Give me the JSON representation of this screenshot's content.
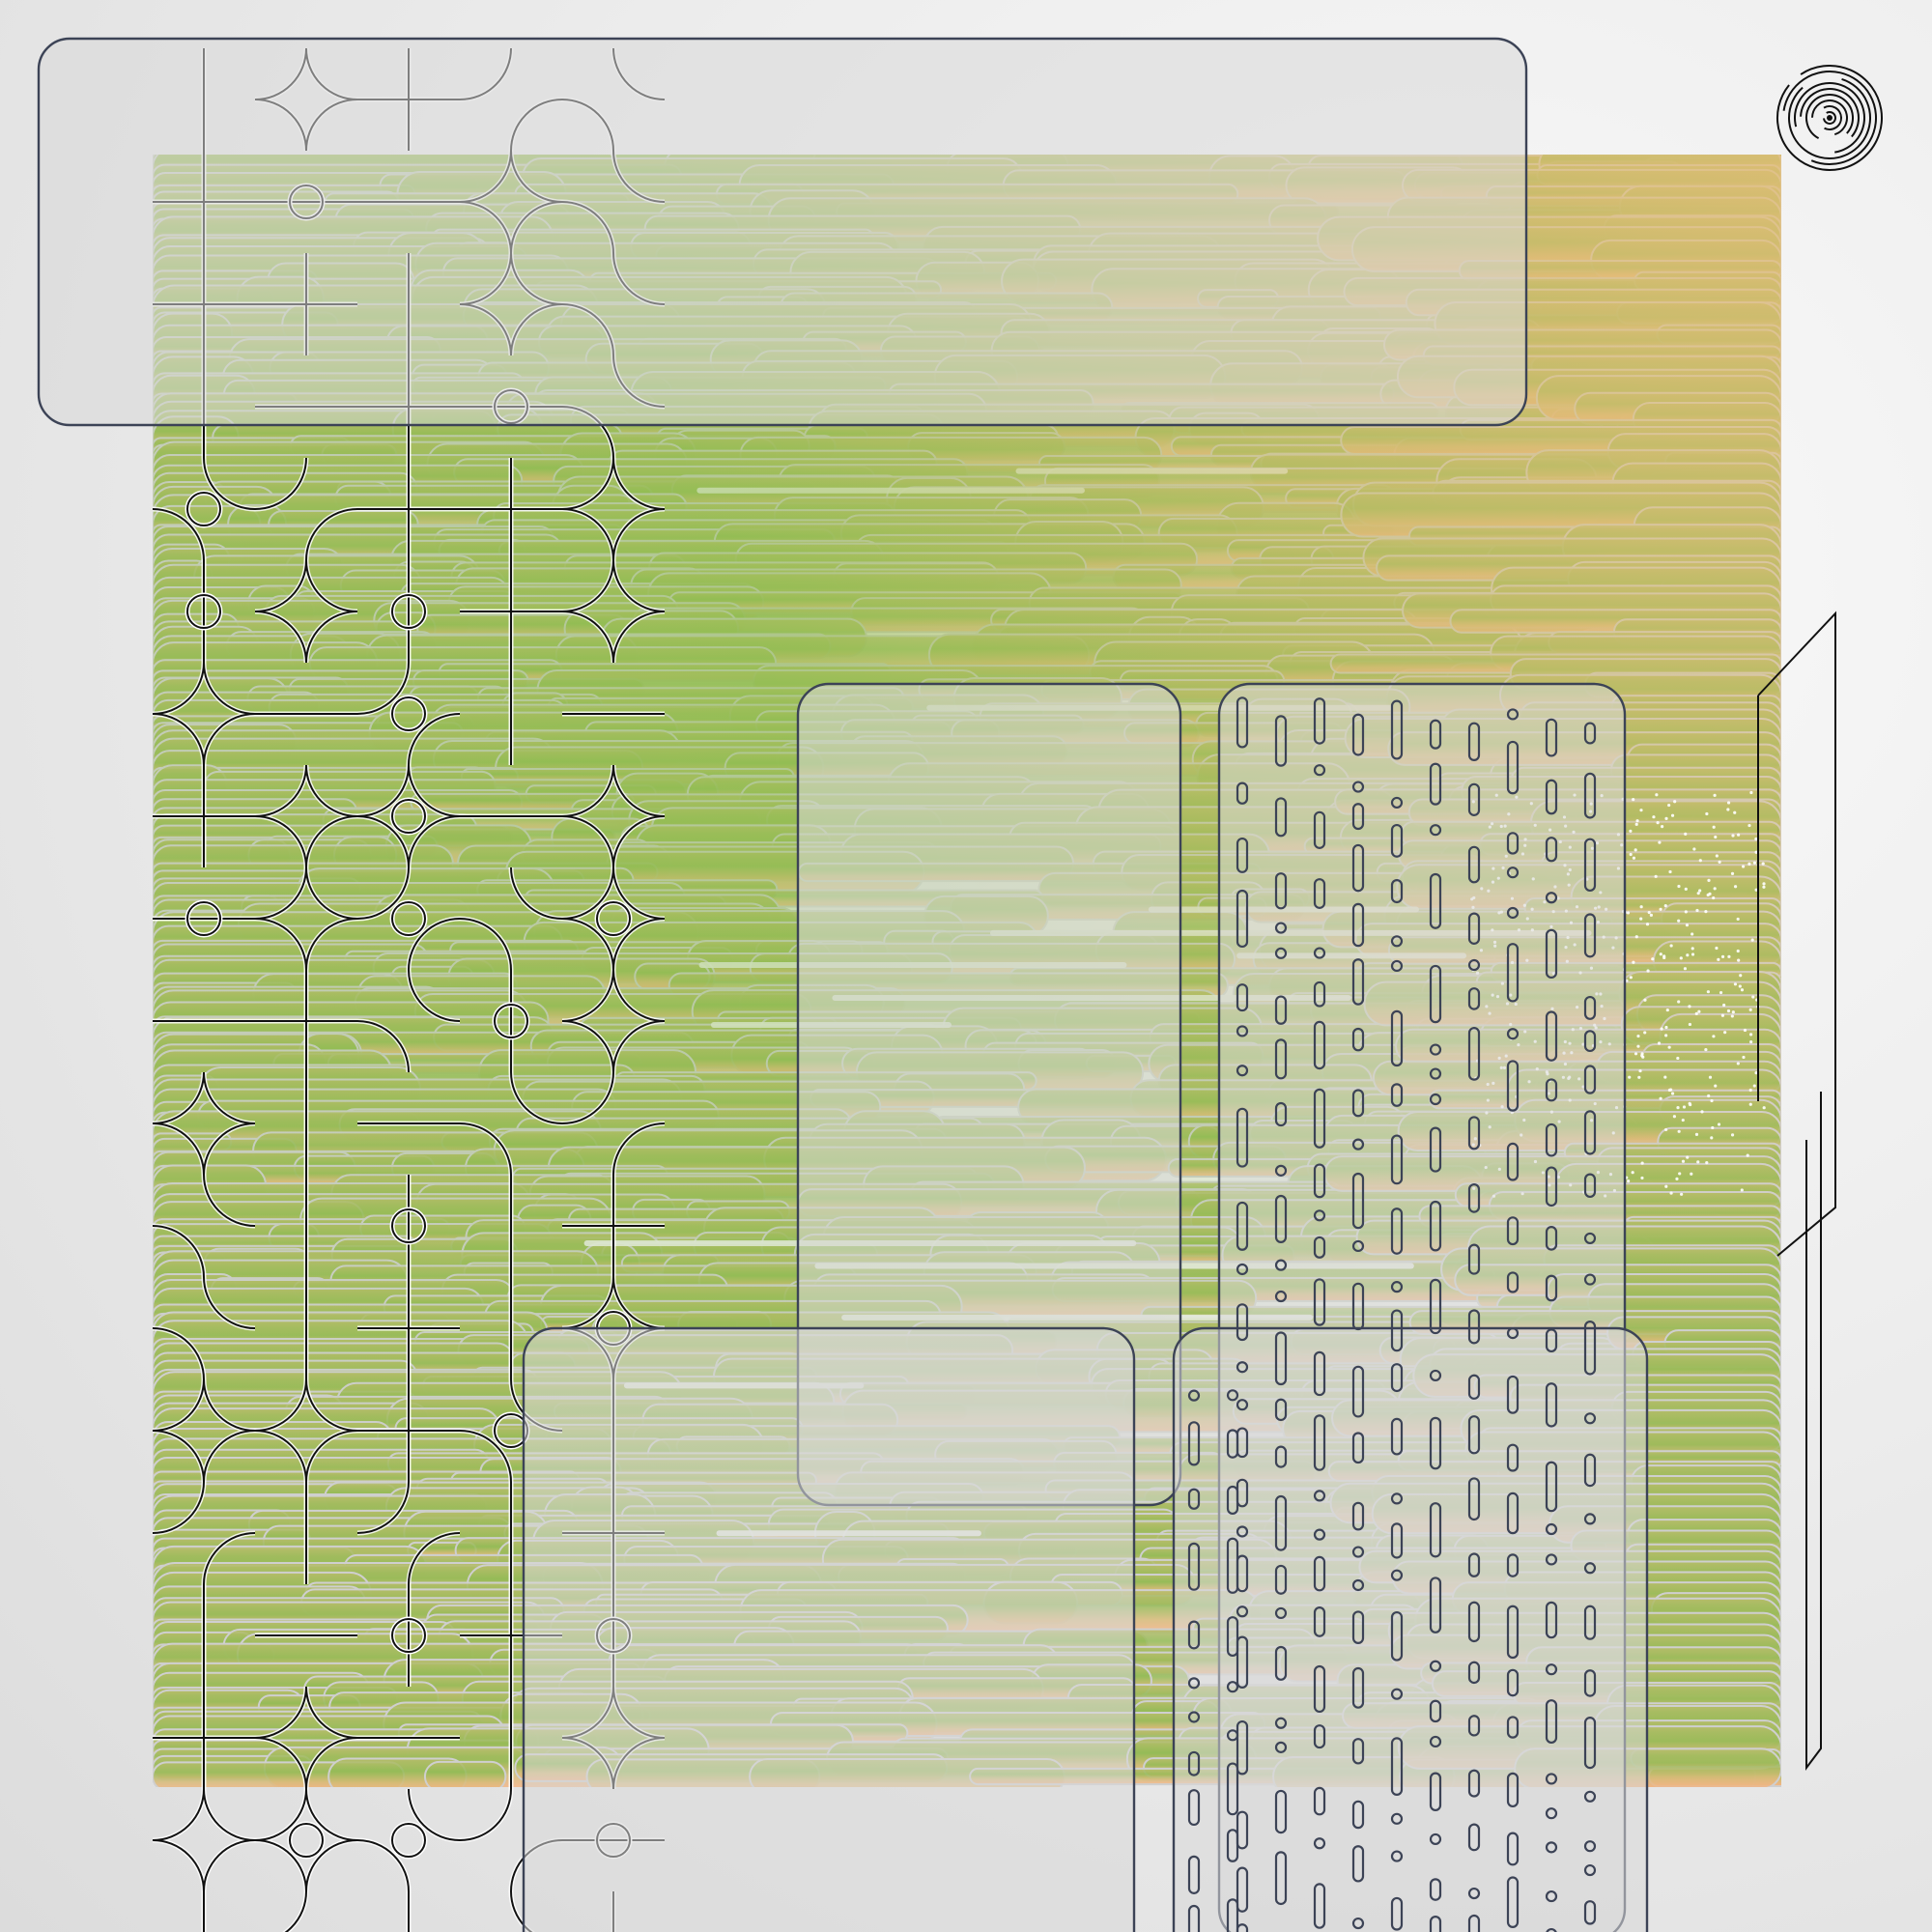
{
  "palette": {
    "green": "#93bb56",
    "olive": "#b9bc6c",
    "tan": "#d8bb78",
    "orange": "#f6b487",
    "stroke_light": "#cfcfcf",
    "line_dark": "#111111",
    "panel_stroke": "#3c4356",
    "panel_fill": "#d9d9d9"
  },
  "elements": {
    "capsule_field": "horizontal-capsule-stripes",
    "tile_grid": "quarter-arc-tile-pattern",
    "panels": "rounded-rect-overlays",
    "pill_columns": "vertical-pill-dashes",
    "spiral": "concentric-arc-icon",
    "slant_lines": "parallel-slanted-lines",
    "dot_cloud": "white-dot-scatter"
  }
}
